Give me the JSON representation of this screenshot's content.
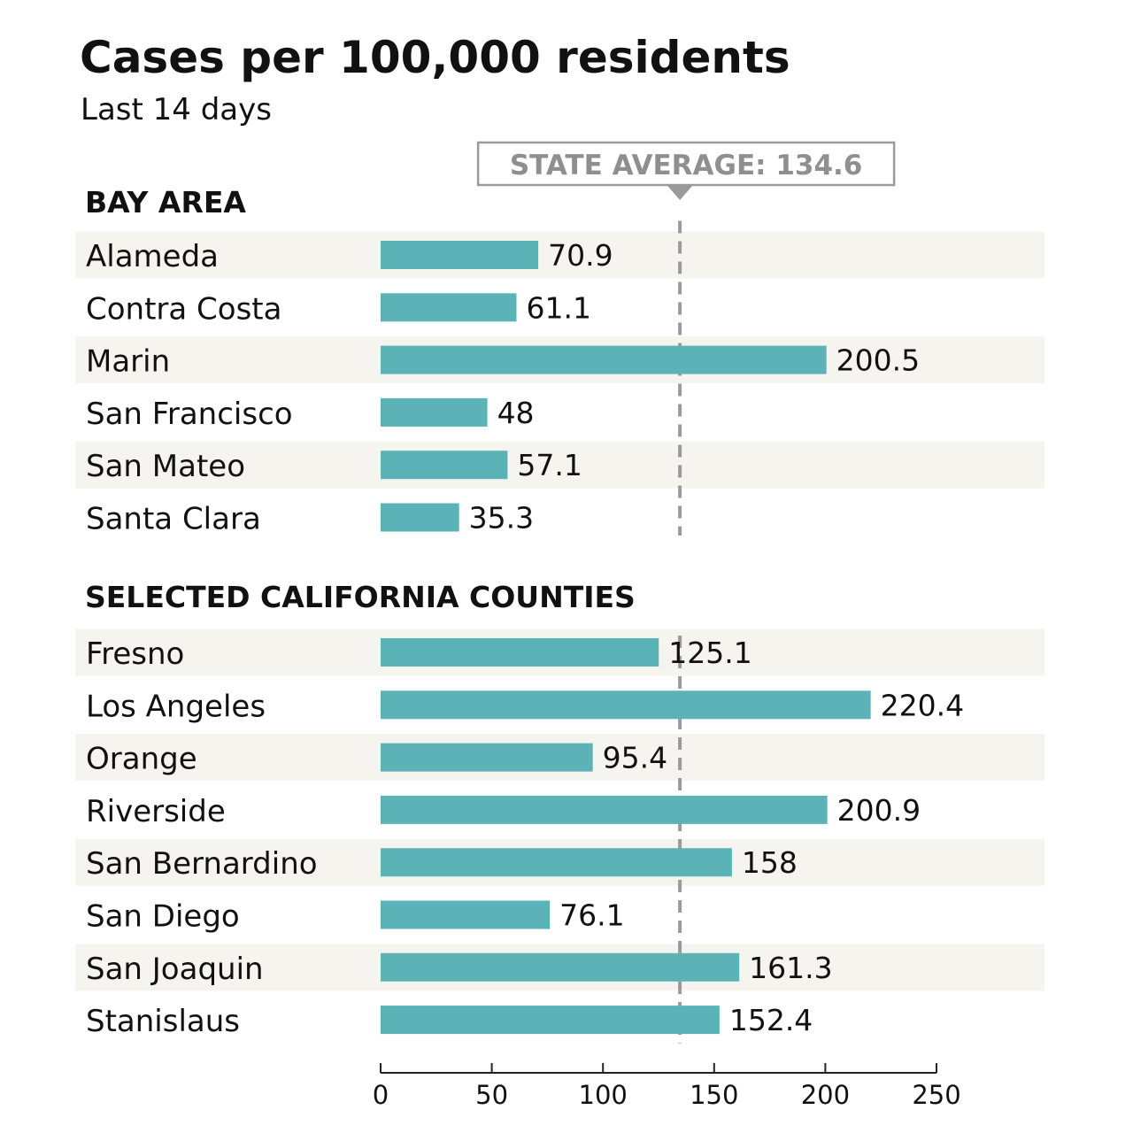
{
  "chart_data": {
    "type": "bar",
    "orientation": "horizontal",
    "title": "Cases per 100,000 residents",
    "subtitle": "Last 14 days",
    "reference_line": {
      "label": "STATE AVERAGE: 134.6",
      "value": 134.6
    },
    "xlim": [
      0,
      250
    ],
    "x_ticks": [
      0,
      50,
      100,
      150,
      200,
      250
    ],
    "grid": false,
    "groups": [
      {
        "name": "BAY AREA",
        "categories": [
          "Alameda",
          "Contra Costa",
          "Marin",
          "San Francisco",
          "San Mateo",
          "Santa Clara"
        ],
        "values": [
          70.9,
          61.1,
          200.5,
          48,
          57.1,
          35.3
        ],
        "labels": [
          "70.9",
          "61.1",
          "200.5",
          "48",
          "57.1",
          "35.3"
        ]
      },
      {
        "name": "SELECTED CALIFORNIA COUNTIES",
        "categories": [
          "Fresno",
          "Los Angeles",
          "Orange",
          "Riverside",
          "San Bernardino",
          "San Diego",
          "San Joaquin",
          "Stanislaus"
        ],
        "values": [
          125.1,
          220.4,
          95.4,
          200.9,
          158,
          76.1,
          161.3,
          152.4
        ],
        "labels": [
          "125.1",
          "220.4",
          "95.4",
          "200.9",
          "158",
          "76.1",
          "161.3",
          "152.4"
        ]
      }
    ]
  },
  "colors": {
    "bar": "#5bb3b8",
    "row_stripe": "#f6f4ef",
    "text": "#111111",
    "ref_line": "#9a9a9a",
    "ref_label": "#8f8f8f",
    "axis": "#222222"
  }
}
